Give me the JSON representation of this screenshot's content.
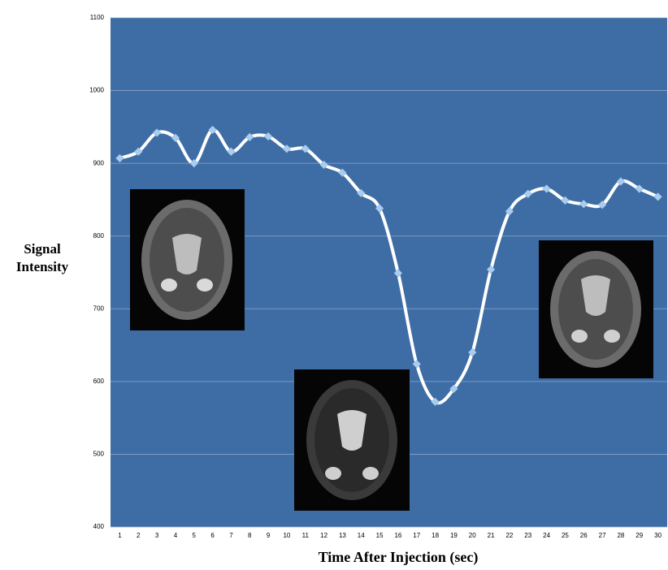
{
  "chart_data": {
    "type": "line",
    "y_label": "Signal Intensity",
    "x_label": "Time After Injection (sec)",
    "categories": [
      "1",
      "2",
      "3",
      "4",
      "5",
      "6",
      "7",
      "8",
      "9",
      "10",
      "11",
      "12",
      "13",
      "14",
      "15",
      "16",
      "17",
      "18",
      "19",
      "20",
      "21",
      "22",
      "23",
      "24",
      "25",
      "26",
      "27",
      "28",
      "29",
      "30"
    ],
    "series": [
      {
        "name": "Signal Intensity",
        "color": "#ffffff",
        "marker_color": "#a9cdef",
        "values": [
          907,
          916,
          942,
          935,
          900,
          946,
          916,
          936,
          937,
          920,
          920,
          898,
          887,
          859,
          838,
          749,
          624,
          572,
          590,
          640,
          754,
          834,
          858,
          865,
          849,
          844,
          843,
          875,
          865,
          854
        ]
      }
    ],
    "ylim": [
      400,
      1100
    ],
    "yticks": [
      400,
      500,
      600,
      700,
      800,
      900,
      1000,
      1100
    ],
    "grid": true,
    "background": "#3e6da5",
    "smooth": true
  }
}
